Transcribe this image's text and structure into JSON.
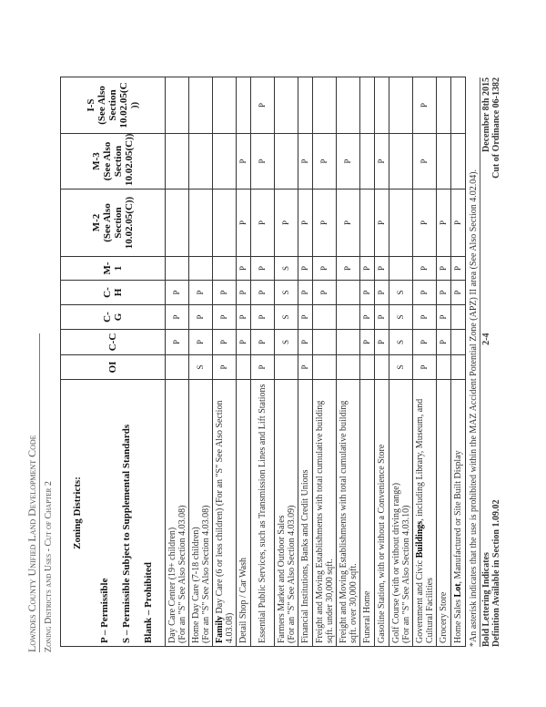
{
  "header": {
    "line1": "Lowndes County Unified Land Development Code",
    "line2": "Zoning Districts and Uses - Cut of Chapter 2"
  },
  "table": {
    "legend": {
      "title": "Zoning Districts:",
      "p": "P – Permissible",
      "s": "S – Permissible Subject to Supplemental Standards",
      "blank": "Blank – Prohibited"
    },
    "columns": [
      "OI",
      "C-C",
      "C-G",
      "C-H",
      "M-1",
      "M-2\n(See Also\nSection\n10.02.05(C))",
      "M-3\n(See Also\nSection\n10.02.05(C))",
      "I-S\n(See Also\nSection\n10.02.05(C\n))"
    ],
    "rows": [
      {
        "use": [
          {
            "t": "Day Care Center (19+ children)\n(For an \"S\" See Also Section 4.03.08)"
          }
        ],
        "values": [
          "",
          "P",
          "P",
          "P",
          "",
          "",
          "",
          ""
        ]
      },
      {
        "use": [
          {
            "t": "Home Day Care (7-18 children)\n(For an \"S\" See Also Section 4.03.08)"
          }
        ],
        "values": [
          "S",
          "P",
          "P",
          "P",
          "",
          "",
          "",
          ""
        ]
      },
      {
        "use": [
          {
            "t": "Family",
            "b": true
          },
          {
            "t": " Day Care (6 or less children)  (For an \"S\" See Also Section 4.03.08)"
          }
        ],
        "values": [
          "P",
          "P",
          "P",
          "P",
          "",
          "",
          "",
          ""
        ]
      },
      {
        "use": [
          {
            "t": "Detail Shop / Car Wash"
          }
        ],
        "values": [
          "",
          "P",
          "P",
          "P",
          "P",
          "P",
          "P",
          ""
        ]
      },
      {
        "use": [
          {
            "t": "Essential Public Services, such as Transmission Lines and Lift Stations"
          }
        ],
        "values": [
          "P",
          "P",
          "P",
          "P",
          "P",
          "P",
          "P",
          "P"
        ]
      },
      {
        "use": [
          {
            "t": "Farmers Market and Outdoor Sales\n(For an \"S\" See Also Section 4.03.09)"
          }
        ],
        "values": [
          "",
          "S",
          "S",
          "S",
          "S",
          "P",
          "",
          ""
        ]
      },
      {
        "use": [
          {
            "t": "Financial Institutions, Banks and Credit Unions"
          }
        ],
        "values": [
          "P",
          "P",
          "P",
          "P",
          "P",
          "P",
          "P",
          ""
        ]
      },
      {
        "use": [
          {
            "t": "Freight and Moving Establishments with total cumulative building sqft. under 30,000 sqft."
          }
        ],
        "values": [
          "",
          "",
          "",
          "P",
          "P",
          "P",
          "P",
          ""
        ]
      },
      {
        "use": [
          {
            "t": "Freight and Moving Establishments with total cumulative building sqft. over 30,000 sqft."
          }
        ],
        "values": [
          "",
          "",
          "",
          "",
          "P",
          "P",
          "P",
          ""
        ]
      },
      {
        "use": [
          {
            "t": "Funeral Home"
          }
        ],
        "values": [
          "",
          "P",
          "P",
          "P",
          "P",
          "",
          "",
          ""
        ]
      },
      {
        "use": [
          {
            "t": "Gasoline Station, with or without a Convenience Store"
          }
        ],
        "values": [
          "",
          "P",
          "P",
          "P",
          "P",
          "P",
          "P",
          ""
        ]
      },
      {
        "use": [
          {
            "t": "Golf Course (with or without driving range)\n(For an \"S\" See Also Section 4.03.10)"
          }
        ],
        "values": [
          "S",
          "S",
          "S",
          "S",
          "",
          "",
          "",
          ""
        ]
      },
      {
        "use": [
          {
            "t": "Government and Civic "
          },
          {
            "t": "Buildings",
            "b": true
          },
          {
            "t": ", including Library, Museum, and Cultural Facilities"
          }
        ],
        "values": [
          "P",
          "P",
          "P",
          "P",
          "P",
          "P",
          "P",
          "P"
        ]
      },
      {
        "use": [
          {
            "t": "Grocery Store"
          }
        ],
        "values": [
          "",
          "P",
          "P",
          "P",
          "P",
          "P",
          "",
          ""
        ]
      },
      {
        "use": [
          {
            "t": "Home Sales "
          },
          {
            "t": "Lot",
            "b": true
          },
          {
            "t": ", Manufactured or Site Built Display"
          }
        ],
        "values": [
          "",
          "",
          "",
          "P",
          "P",
          "P",
          "",
          ""
        ]
      }
    ]
  },
  "footer": {
    "asterisk_note": "*An asterisk indicates that the use is prohibited within the MAZ Accident Potential Zone (APZ) II area (See Also Section 4.02.04).",
    "bold_note": "Bold Lettering Indicates",
    "definition_note": "Definition Available in Section 1.09.02",
    "page_number": "2-4",
    "date": "December 8th 2015",
    "ordinance": "Cut of Ordinance 06-1382"
  }
}
